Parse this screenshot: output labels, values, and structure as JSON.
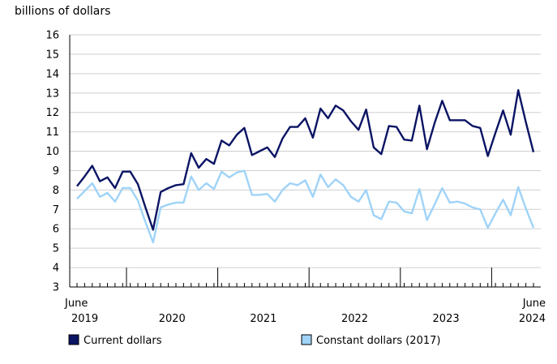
{
  "chart_data": {
    "type": "line",
    "y_unit_label": "billions of dollars",
    "ylim": [
      3,
      16
    ],
    "y_ticks": [
      3,
      4,
      5,
      6,
      7,
      8,
      9,
      10,
      11,
      12,
      13,
      14,
      15,
      16
    ],
    "x_start": "2019-06",
    "x_end": "2024-06",
    "x_tick_labels": [
      {
        "month": "2019-06",
        "line1": "June",
        "line2": "2019"
      },
      {
        "month": "2020-06",
        "line1": "",
        "line2": "2020"
      },
      {
        "month": "2021-06",
        "line1": "",
        "line2": "2021"
      },
      {
        "month": "2022-06",
        "line1": "",
        "line2": "2022"
      },
      {
        "month": "2023-06",
        "line1": "",
        "line2": "2023"
      },
      {
        "month": "2024-06",
        "line1": "June",
        "line2": "2024"
      }
    ],
    "year_boundaries": [
      "2020-01",
      "2021-01",
      "2022-01",
      "2023-01",
      "2024-01"
    ],
    "grid": "horizontal",
    "legend_position": "bottom",
    "series": [
      {
        "name": "Current dollars",
        "color": "#0a1464",
        "values": [
          8.2,
          8.7,
          9.25,
          8.45,
          8.65,
          8.1,
          8.95,
          8.95,
          8.3,
          7.1,
          5.95,
          7.9,
          8.1,
          8.25,
          8.3,
          9.9,
          9.15,
          9.6,
          9.35,
          10.55,
          10.3,
          10.85,
          11.2,
          9.8,
          10.0,
          10.2,
          9.7,
          10.65,
          11.25,
          11.25,
          11.7,
          10.7,
          12.2,
          11.7,
          12.35,
          12.1,
          11.55,
          11.1,
          12.15,
          10.2,
          9.85,
          11.3,
          11.25,
          10.6,
          10.55,
          12.35,
          10.1,
          11.45,
          12.6,
          11.6,
          11.6,
          11.6,
          11.3,
          11.2,
          9.75,
          10.95,
          12.1,
          10.85,
          13.15,
          11.5,
          9.95
        ]
      },
      {
        "name": "Constant dollars (2017)",
        "color": "#9fd3f8",
        "values": [
          7.55,
          7.95,
          8.35,
          7.65,
          7.85,
          7.4,
          8.1,
          8.1,
          7.45,
          6.35,
          5.3,
          7.1,
          7.25,
          7.35,
          7.35,
          8.7,
          8.0,
          8.35,
          8.05,
          8.95,
          8.65,
          8.9,
          9.0,
          7.75,
          7.75,
          7.8,
          7.4,
          8.0,
          8.35,
          8.25,
          8.5,
          7.65,
          8.8,
          8.15,
          8.55,
          8.25,
          7.65,
          7.4,
          8.0,
          6.7,
          6.5,
          7.4,
          7.35,
          6.9,
          6.8,
          8.05,
          6.45,
          7.25,
          8.1,
          7.35,
          7.4,
          7.3,
          7.1,
          7.0,
          6.05,
          6.8,
          7.5,
          6.7,
          8.15,
          7.05,
          6.05
        ]
      }
    ]
  }
}
